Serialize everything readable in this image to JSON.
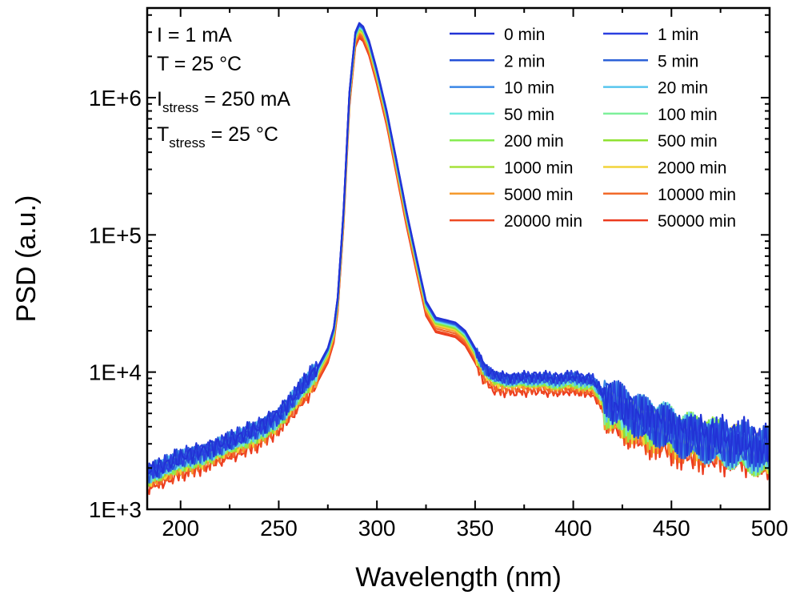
{
  "chart_data": {
    "type": "line",
    "xlabel": "Wavelength (nm)",
    "ylabel": "PSD (a.u.)",
    "xlim": [
      183,
      500
    ],
    "ylim": [
      1000,
      4500000
    ],
    "yscale": "log",
    "x_ticks": [
      200,
      250,
      300,
      350,
      400,
      450,
      500
    ],
    "y_ticks": [
      {
        "value": 1000,
        "label": "1E+3"
      },
      {
        "value": 10000,
        "label": "1E+4"
      },
      {
        "value": 100000,
        "label": "1E+5"
      },
      {
        "value": 1000000,
        "label": "1E+6"
      }
    ],
    "legend_position": "top-right",
    "annotations": [
      {
        "text": "I = 1 mA"
      },
      {
        "text": "T = 25 °C"
      },
      {
        "main": "I",
        "sub": "stress",
        "rest": " = 250 mA"
      },
      {
        "main": "T",
        "sub": "stress",
        "rest": " = 25 °C"
      }
    ],
    "base_spectrum": {
      "x": [
        183,
        190,
        200,
        210,
        220,
        230,
        240,
        250,
        255,
        260,
        265,
        270,
        275,
        278,
        280,
        283,
        286,
        289,
        291,
        293,
        296,
        300,
        305,
        310,
        315,
        320,
        325,
        330,
        335,
        340,
        345,
        350,
        355,
        360,
        370,
        380,
        390,
        400,
        405,
        410,
        415,
        420,
        425,
        430,
        435,
        440,
        445,
        450,
        455,
        460,
        465,
        470,
        480,
        490,
        500
      ],
      "y": [
        1900,
        2050,
        2400,
        2650,
        3000,
        3400,
        4000,
        5000,
        6000,
        7300,
        9000,
        11000,
        15000,
        21000,
        35000,
        150000,
        1100000,
        3000000,
        3500000,
        3300000,
        2600000,
        1600000,
        800000,
        350000,
        150000,
        70000,
        33000,
        25000,
        24000,
        23000,
        20000,
        15000,
        11000,
        9500,
        9200,
        9400,
        9100,
        9300,
        9100,
        8800,
        7000,
        6000,
        5500,
        5200,
        4600,
        4500,
        4300,
        4000,
        3700,
        3600,
        3500,
        3400,
        3200,
        3000,
        2700
      ]
    },
    "series": [
      {
        "name": "0 min",
        "color": "#2233d6",
        "scale": 1.0
      },
      {
        "name": "1 min",
        "color": "#2a3fe0",
        "scale": 0.99
      },
      {
        "name": "2 min",
        "color": "#2450d8",
        "scale": 0.98
      },
      {
        "name": "5 min",
        "color": "#2c62d8",
        "scale": 0.97
      },
      {
        "name": "10 min",
        "color": "#3a86e6",
        "scale": 0.96
      },
      {
        "name": "20 min",
        "color": "#58c6ee",
        "scale": 0.95
      },
      {
        "name": "50 min",
        "color": "#6de8e0",
        "scale": 0.94
      },
      {
        "name": "100 min",
        "color": "#7ef09a",
        "scale": 0.93
      },
      {
        "name": "200 min",
        "color": "#86ec52",
        "scale": 0.92
      },
      {
        "name": "500 min",
        "color": "#8fe232",
        "scale": 0.91
      },
      {
        "name": "1000 min",
        "color": "#a6e23a",
        "scale": 0.9
      },
      {
        "name": "2000 min",
        "color": "#f2d43a",
        "scale": 0.88
      },
      {
        "name": "5000 min",
        "color": "#f59a2e",
        "scale": 0.86
      },
      {
        "name": "10000 min",
        "color": "#f26a2a",
        "scale": 0.83
      },
      {
        "name": "20000 min",
        "color": "#ee4a22",
        "scale": 0.8
      },
      {
        "name": "50000 min",
        "color": "#ec3a1e",
        "scale": 0.78
      }
    ]
  }
}
